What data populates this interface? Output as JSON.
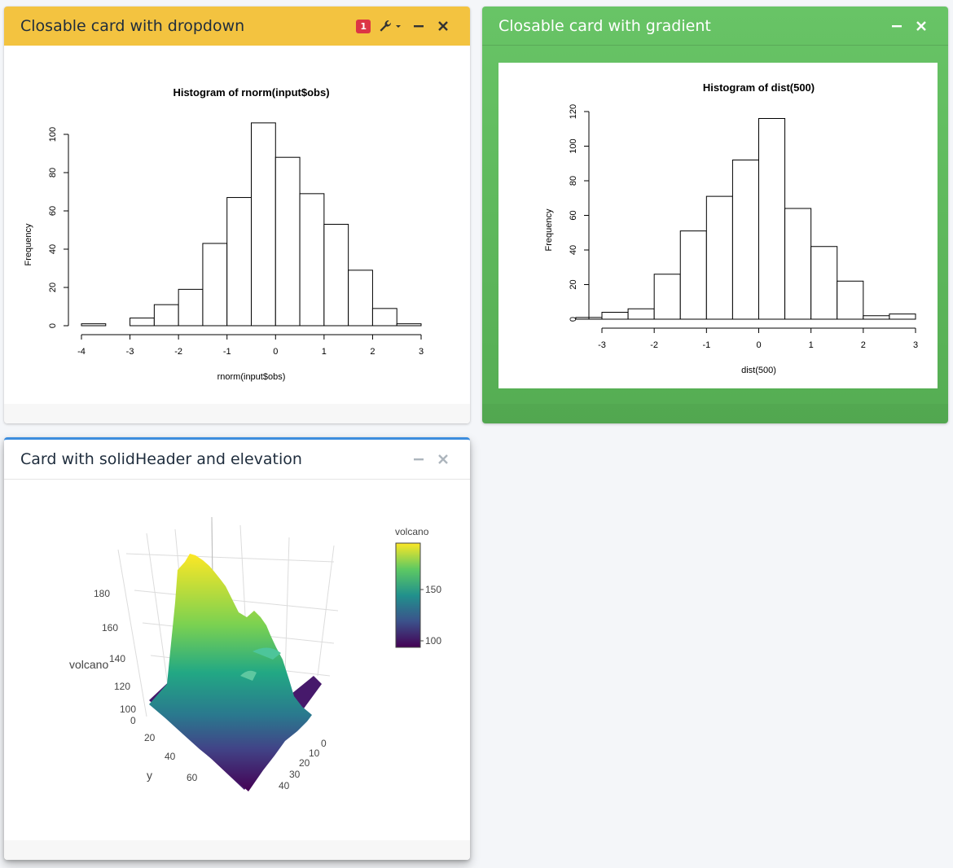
{
  "cards": [
    {
      "title": "Closable card with dropdown",
      "badge": "1",
      "header_color": "#f3c340",
      "chart_data": {
        "type": "bar",
        "title": "Histogram of rnorm(input$obs)",
        "xlabel": "rnorm(input$obs)",
        "ylabel": "Frequency",
        "bin_edges": [
          -4,
          -3.5,
          -3,
          -2.5,
          -2,
          -1.5,
          -1,
          -0.5,
          0,
          0.5,
          1,
          1.5,
          2,
          2.5,
          3
        ],
        "values": [
          1,
          0,
          4,
          11,
          19,
          43,
          67,
          106,
          88,
          69,
          53,
          29,
          9,
          1
        ],
        "xlim": [
          -4,
          3
        ],
        "ylim": [
          0,
          100
        ],
        "x_ticks": [
          "-4",
          "-3",
          "-2",
          "-1",
          "0",
          "1",
          "2",
          "3"
        ],
        "y_ticks": [
          "0",
          "20",
          "40",
          "60",
          "80",
          "100"
        ]
      }
    },
    {
      "title": "Closable card with gradient",
      "header_color": "#68c466",
      "chart_data": {
        "type": "bar",
        "title": "Histogram of dist(500)",
        "xlabel": "dist(500)",
        "ylabel": "Frequency",
        "bin_edges": [
          -3.5,
          -3,
          -2.5,
          -2,
          -1.5,
          -1,
          -0.5,
          0,
          0.5,
          1,
          1.5,
          2,
          2.5,
          3
        ],
        "values": [
          1,
          4,
          6,
          26,
          51,
          71,
          92,
          116,
          64,
          42,
          22,
          2,
          3
        ],
        "xlim": [
          -3,
          3
        ],
        "ylim": [
          0,
          120
        ],
        "x_ticks": [
          "-3",
          "-2",
          "-1",
          "0",
          "1",
          "2",
          "3"
        ],
        "y_ticks": [
          "0",
          "20",
          "40",
          "60",
          "80",
          "100",
          "120"
        ]
      }
    },
    {
      "title": "Card with solidHeader and elevation",
      "accent": "#3c8dde",
      "plot": {
        "legend_title": "volcano",
        "legend_ticks": [
          "150",
          "100"
        ],
        "z_axis_title": "volcano",
        "z_ticks": [
          "180",
          "160",
          "140",
          "120",
          "100"
        ],
        "y_axis_title": "y",
        "y_ticks": [
          "0",
          "20",
          "40",
          "60"
        ],
        "x_ticks": [
          "0",
          "10",
          "20",
          "30",
          "40"
        ],
        "colorscale": [
          "#fde725",
          "#5ec962",
          "#21918c",
          "#3b528b",
          "#440154"
        ]
      }
    }
  ],
  "icons": {
    "collapse": "minus-icon",
    "close": "close-icon",
    "tools": "wrench-icon"
  }
}
